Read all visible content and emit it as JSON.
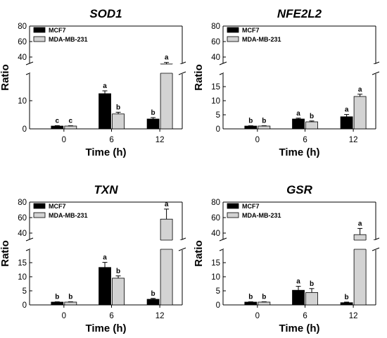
{
  "chart_data": [
    {
      "type": "bar",
      "title": "SOD1",
      "xlabel": "Time (h)",
      "ylabel": "Ratio",
      "categories": [
        "0",
        "6",
        "12"
      ],
      "series": [
        {
          "name": "MCF7",
          "color": "#000000",
          "values": [
            1.0,
            12.5,
            3.5
          ],
          "errors": [
            0.15,
            1.0,
            0.5
          ],
          "letters": [
            "c",
            "a",
            "b"
          ]
        },
        {
          "name": "MDA-MB-231",
          "color": "#d3d3d3",
          "values": [
            1.0,
            5.3,
            31.0
          ],
          "errors": [
            0.1,
            0.6,
            2.0
          ],
          "letters": [
            "c",
            "b",
            "a"
          ]
        }
      ],
      "axis_break": {
        "lower": [
          0,
          20
        ],
        "upper": [
          30,
          80
        ]
      },
      "yticks_lower": [
        "0",
        "10"
      ],
      "yticks_upper": [
        "40",
        "60",
        "80"
      ],
      "legend": "top-left"
    },
    {
      "type": "bar",
      "title": "NFE2L2",
      "xlabel": "Time (h)",
      "ylabel": "Ratio",
      "categories": [
        "0",
        "6",
        "12"
      ],
      "series": [
        {
          "name": "MCF7",
          "color": "#000000",
          "values": [
            1.0,
            3.5,
            4.3
          ],
          "errors": [
            0.1,
            0.3,
            0.8
          ],
          "letters": [
            "b",
            "a",
            "a"
          ]
        },
        {
          "name": "MDA-MB-231",
          "color": "#d3d3d3",
          "values": [
            1.0,
            2.5,
            11.5
          ],
          "errors": [
            0.1,
            0.3,
            0.8
          ],
          "letters": [
            "b",
            "b",
            "a"
          ]
        }
      ],
      "axis_break": {
        "lower": [
          0,
          20
        ],
        "upper": [
          30,
          80
        ]
      },
      "yticks_lower": [
        "0",
        "5",
        "10",
        "15"
      ],
      "yticks_upper": [
        "40",
        "60",
        "80"
      ],
      "legend": "top-left"
    },
    {
      "type": "bar",
      "title": "TXN",
      "xlabel": "Time (h)",
      "ylabel": "Ratio",
      "categories": [
        "0",
        "6",
        "12"
      ],
      "series": [
        {
          "name": "MCF7",
          "color": "#000000",
          "values": [
            1.0,
            13.3,
            2.0
          ],
          "errors": [
            0.1,
            1.8,
            0.3
          ],
          "letters": [
            "b",
            "a",
            "b"
          ]
        },
        {
          "name": "MDA-MB-231",
          "color": "#d3d3d3",
          "values": [
            1.0,
            9.5,
            58.0
          ],
          "errors": [
            0.1,
            0.8,
            13.0
          ],
          "letters": [
            "b",
            "b",
            "a"
          ]
        }
      ],
      "axis_break": {
        "lower": [
          0,
          20
        ],
        "upper": [
          30,
          80
        ]
      },
      "yticks_lower": [
        "0",
        "5",
        "10",
        "15"
      ],
      "yticks_upper": [
        "40",
        "60",
        "80"
      ],
      "legend": "top-left"
    },
    {
      "type": "bar",
      "title": "GSR",
      "xlabel": "Time (h)",
      "ylabel": "Ratio",
      "categories": [
        "0",
        "6",
        "12"
      ],
      "series": [
        {
          "name": "MCF7",
          "color": "#000000",
          "values": [
            1.0,
            5.2,
            0.8
          ],
          "errors": [
            0.1,
            1.4,
            0.2
          ],
          "letters": [
            "b",
            "a",
            "b"
          ]
        },
        {
          "name": "MDA-MB-231",
          "color": "#d3d3d3",
          "values": [
            1.0,
            4.4,
            38.0
          ],
          "errors": [
            0.1,
            1.4,
            8.0
          ],
          "letters": [
            "b",
            "b",
            "a"
          ]
        }
      ],
      "axis_break": {
        "lower": [
          0,
          20
        ],
        "upper": [
          30,
          80
        ]
      },
      "yticks_lower": [
        "0",
        "5",
        "10",
        "15"
      ],
      "yticks_upper": [
        "40",
        "60",
        "80"
      ],
      "legend": "top-left"
    }
  ]
}
